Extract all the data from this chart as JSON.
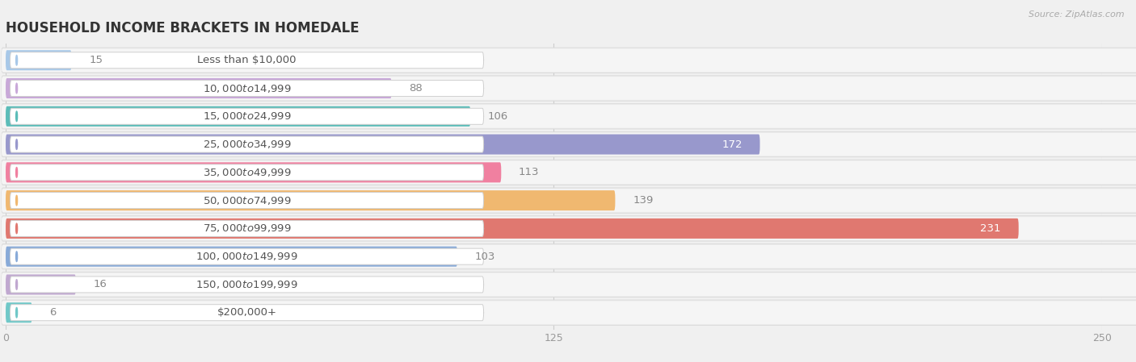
{
  "title": "HOUSEHOLD INCOME BRACKETS IN HOMEDALE",
  "source": "Source: ZipAtlas.com",
  "categories": [
    "Less than $10,000",
    "$10,000 to $14,999",
    "$15,000 to $24,999",
    "$25,000 to $34,999",
    "$35,000 to $49,999",
    "$50,000 to $74,999",
    "$75,000 to $99,999",
    "$100,000 to $149,999",
    "$150,000 to $199,999",
    "$200,000+"
  ],
  "values": [
    15,
    88,
    106,
    172,
    113,
    139,
    231,
    103,
    16,
    6
  ],
  "colors": [
    "#a8c8e8",
    "#c8a8d8",
    "#5bbcb8",
    "#9898cc",
    "#f080a0",
    "#f0b870",
    "#e07870",
    "#88aad8",
    "#c0a8d0",
    "#70c8c8"
  ],
  "xlim_max": 250,
  "xticks": [
    0,
    125,
    250
  ],
  "bg_color": "#f0f0f0",
  "row_bg_color": "#ebebeb",
  "row_inner_color": "#f8f8f8",
  "title_fontsize": 12,
  "label_fontsize": 9.5,
  "value_fontsize": 9.5,
  "value_inside_threshold": 165
}
